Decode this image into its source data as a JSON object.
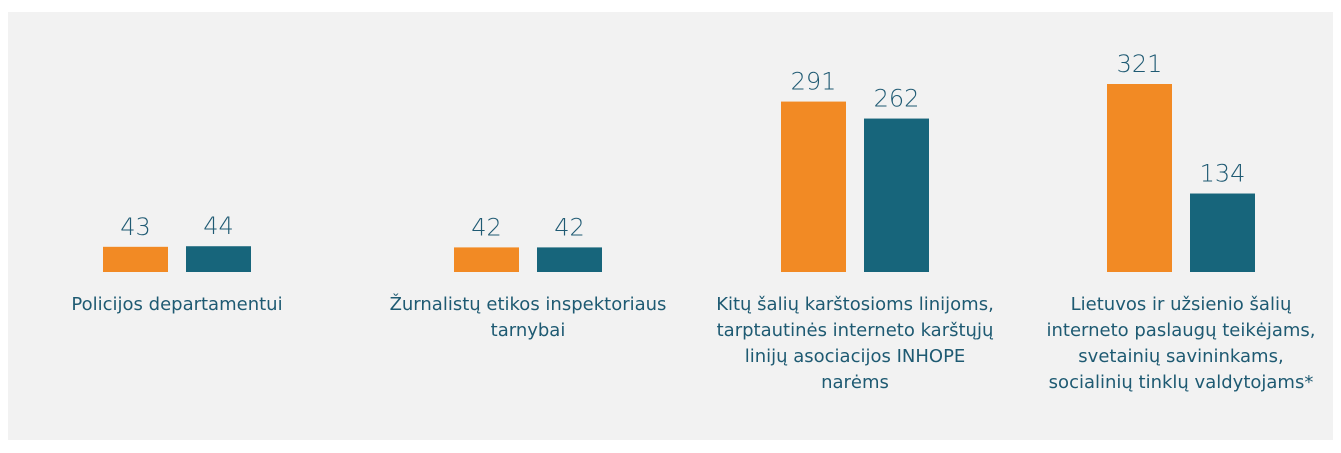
{
  "chart_data": {
    "type": "bar",
    "categories": [
      "Policijos departamentui",
      "Žurnalistų etikos inspektoriaus tarnybai",
      "Kitų šalių karštosioms linijoms, tarptautinės interneto karštųjų linijų asociacijos INHOPE narėms",
      "Lietuvos ir užsienio šalių interneto paslaugų teikėjams, svetainių savininkams, socialinių tinklų valdytojams*"
    ],
    "series": [
      {
        "color": "#f28a24",
        "values": [
          43,
          42,
          291,
          321
        ]
      },
      {
        "color": "#17657b",
        "values": [
          44,
          42,
          262,
          134
        ]
      }
    ],
    "ylim": [
      0,
      400
    ]
  }
}
